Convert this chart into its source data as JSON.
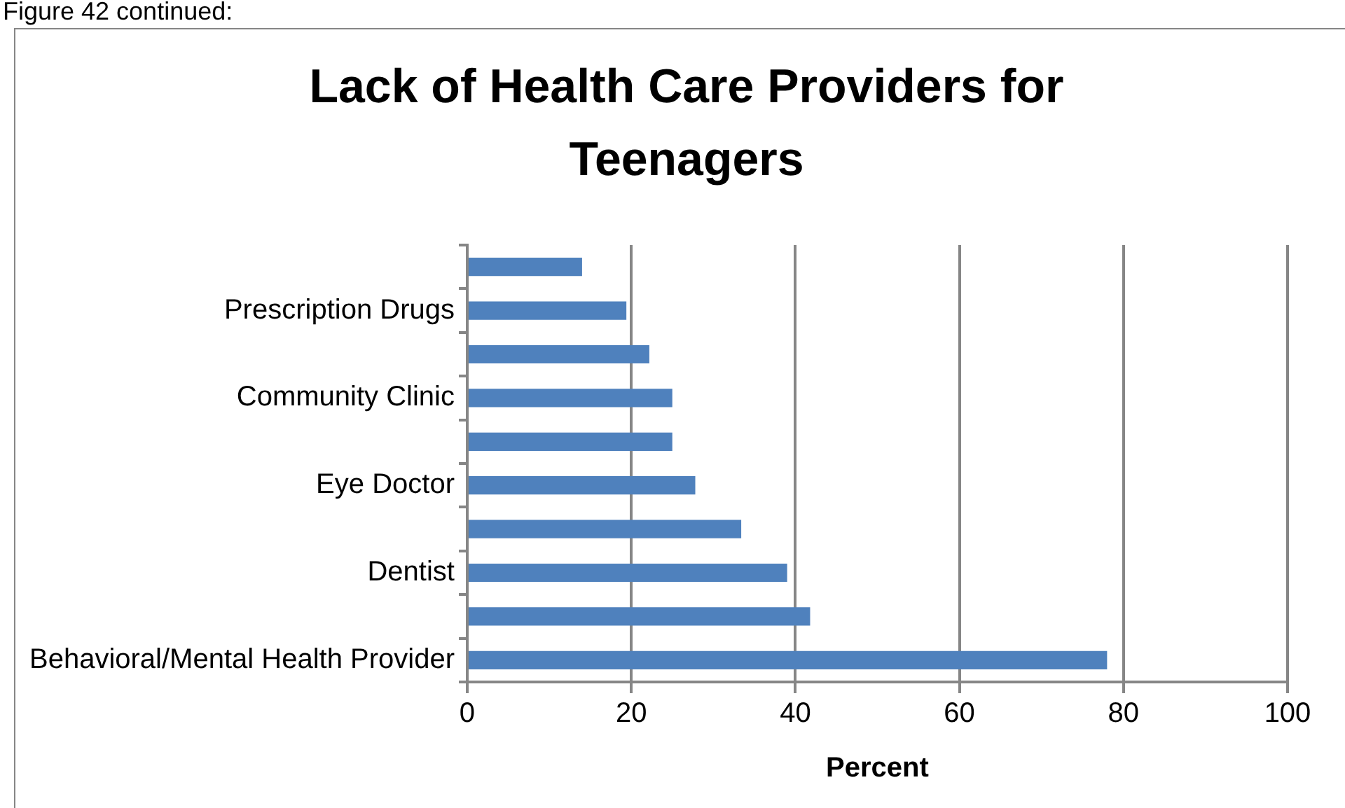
{
  "chart_data": {
    "type": "bar",
    "title": "Lack of Health Care Providers for Teenagers",
    "xlabel": "Percent",
    "annotations": [
      "Figure 42 continued:"
    ],
    "orientation": "horizontal",
    "categories": [
      null,
      "Prescription Drugs",
      null,
      "Community Clinic",
      null,
      "Eye Doctor",
      null,
      "Dentist",
      null,
      "Behavioral/Mental Health Provider"
    ],
    "values": [
      14,
      19.4,
      22.2,
      25,
      25,
      27.8,
      33.4,
      39,
      41.8,
      78
    ],
    "color": "#4f81bd",
    "xlim": [
      0,
      100
    ],
    "xticks": [
      0,
      20,
      40,
      60,
      80,
      100
    ],
    "grid": "x"
  }
}
